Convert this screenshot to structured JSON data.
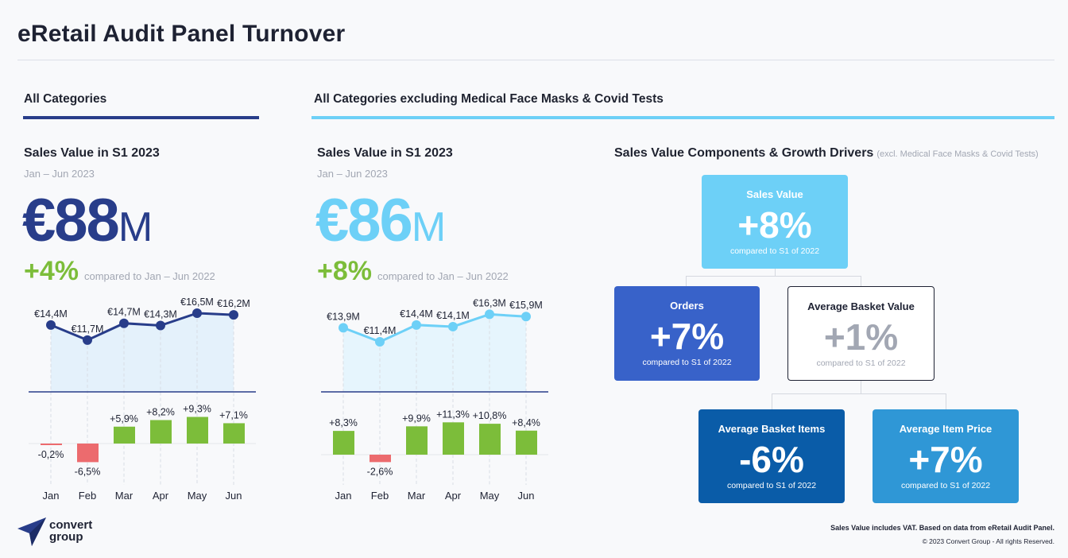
{
  "title": "eRetail Audit Panel Turnover",
  "section_all": "All Categories",
  "section_excl": "All Categories excluding Medical Face Masks & Covid Tests",
  "panel1": {
    "subtitle": "Sales Value in S1 2023",
    "period": "Jan – Jun 2023",
    "big_number": "€88",
    "big_unit": "M",
    "growth": "+4%",
    "compare": "compared to Jan – Jun 2022"
  },
  "panel2": {
    "subtitle": "Sales Value in S1 2023",
    "period": "Jan – Jun 2023",
    "big_number": "€86",
    "big_unit": "M",
    "growth": "+8%",
    "compare": "compared to Jan – Jun 2022"
  },
  "drivers": {
    "title": "Sales Value Components & Growth Drivers",
    "note": "(excl. Medical Face Masks & Covid Tests)",
    "sales_value": {
      "label": "Sales Value",
      "value": "+8%",
      "compare": "compared to S1 of 2022"
    },
    "orders": {
      "label": "Orders",
      "value": "+7%",
      "compare": "compared to S1 of 2022"
    },
    "avg_basket_value": {
      "label": "Average Basket Value",
      "value": "+1%",
      "compare": "compared to S1 of 2022"
    },
    "avg_basket_items": {
      "label": "Average Basket Items",
      "value": "-6%",
      "compare": "compared to S1 of 2022"
    },
    "avg_item_price": {
      "label": "Average Item Price",
      "value": "+7%",
      "compare": "compared to S1 of 2022"
    }
  },
  "footnote": "Sales Value includes VAT. Based on data from eRetail Audit Panel.",
  "copyright": "© 2023 Convert Group - All rights Reserved.",
  "logo": {
    "line1": "convert",
    "line2": "group"
  },
  "colors": {
    "navy": "#283d8a",
    "light_blue": "#6dd0f7",
    "green": "#7cbd3a",
    "red": "#ec6b6e"
  },
  "chart_data": [
    {
      "type": "line",
      "categories": [
        "Jan",
        "Feb",
        "Mar",
        "Apr",
        "May",
        "Jun"
      ],
      "series": [
        {
          "values": [
            14.4,
            11.7,
            14.7,
            14.3,
            16.5,
            16.2
          ],
          "labels": [
            "€14,4M",
            "€11,7M",
            "€14,7M",
            "€14,3M",
            "€16,5M",
            "€16,2M"
          ]
        },
        {
          "values": [
            -0.2,
            -6.5,
            5.9,
            8.2,
            9.3,
            7.1
          ],
          "labels": [
            "-0,2%",
            "-6,5%",
            "+5,9%",
            "+8,2%",
            "+9,3%",
            "+7,1%"
          ]
        }
      ],
      "color": "#283d8a"
    },
    {
      "type": "line",
      "categories": [
        "Jan",
        "Feb",
        "Mar",
        "Apr",
        "May",
        "Jun"
      ],
      "series": [
        {
          "values": [
            13.9,
            11.4,
            14.4,
            14.1,
            16.3,
            15.9
          ],
          "labels": [
            "€13,9M",
            "€11,4M",
            "€14,4M",
            "€14,1M",
            "€16,3M",
            "€15,9M"
          ]
        },
        {
          "values": [
            8.3,
            -2.6,
            9.9,
            11.3,
            10.8,
            8.4
          ],
          "labels": [
            "+8,3%",
            "-2,6%",
            "+9,9%",
            "+11,3%",
            "+10,8%",
            "+8,4%"
          ]
        }
      ],
      "color": "#6dd0f7"
    }
  ]
}
